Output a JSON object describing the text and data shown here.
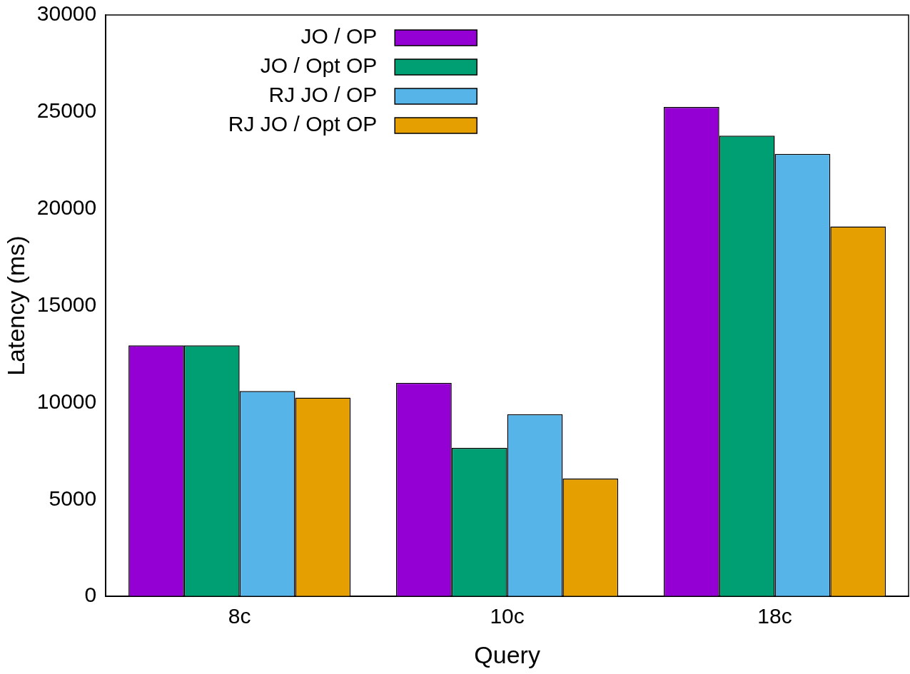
{
  "chart_data": {
    "type": "bar",
    "xlabel": "Query",
    "ylabel": "Latency (ms)",
    "categories": [
      "8c",
      "10c",
      "18c"
    ],
    "series": [
      {
        "name": "JO / OP",
        "color": "#9400d3",
        "values": [
          12950,
          11020,
          25250
        ]
      },
      {
        "name": "JO / Opt OP",
        "color": "#009e73",
        "values": [
          12950,
          7660,
          23770
        ]
      },
      {
        "name": "RJ JO / OP",
        "color": "#56b4e9",
        "values": [
          10600,
          9400,
          22830
        ]
      },
      {
        "name": "RJ JO / Opt OP",
        "color": "#e69f00",
        "values": [
          10260,
          6080,
          19090
        ]
      }
    ],
    "ylim": [
      0,
      30000
    ],
    "yticks": [
      0,
      5000,
      10000,
      15000,
      20000,
      25000,
      30000
    ],
    "grid": false,
    "legend": "top left"
  }
}
